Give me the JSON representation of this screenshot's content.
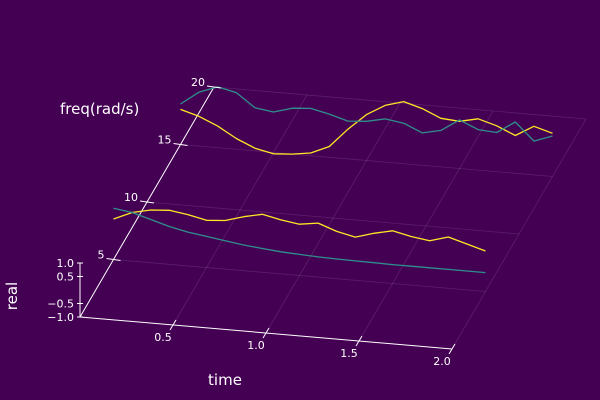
{
  "chart_data": {
    "type": "line",
    "subtype": "3d-line",
    "title": "",
    "xlabel": "time",
    "ylabel": "freq(rad/s)",
    "zlabel": "real",
    "xlim": [
      0,
      2.0
    ],
    "ylim": [
      0,
      20
    ],
    "zlim": [
      -1.0,
      1.0
    ],
    "x_ticks": [
      "0.5",
      "1.0",
      "1.5",
      "2.0"
    ],
    "y_ticks": [
      "5",
      "10",
      "15",
      "20"
    ],
    "z_ticks": [
      "1.0",
      "0.5",
      "−0.5",
      "−1.0"
    ],
    "x_tick_values": [
      0.5,
      1.0,
      1.5,
      2.0
    ],
    "y_tick_values": [
      5,
      10,
      15,
      20
    ],
    "z_tick_values": [
      1.0,
      0.5,
      -0.5,
      -1.0
    ],
    "background": "#440154",
    "grid": true,
    "legend": "none",
    "series": [
      {
        "color": "#fde725",
        "x": [
          0.0,
          0.1,
          0.2,
          0.3,
          0.4,
          0.5,
          0.6,
          0.7,
          0.8,
          0.9,
          1.0,
          1.1,
          1.2,
          1.3,
          1.4,
          1.5,
          1.6,
          1.7,
          1.8,
          1.9,
          2.0
        ],
        "y": [
          5,
          5,
          5,
          5,
          5,
          5,
          5,
          5,
          5,
          5,
          5,
          5,
          5,
          5,
          5,
          5,
          5,
          5,
          5,
          5,
          5
        ],
        "z": [
          0.5,
          0.8,
          0.95,
          1.0,
          0.9,
          0.75,
          0.8,
          1.0,
          1.15,
          1.0,
          0.9,
          1.0,
          0.75,
          0.6,
          0.8,
          0.95,
          0.8,
          0.7,
          0.9,
          0.7,
          0.5
        ]
      },
      {
        "color": "#fde725",
        "x": [
          0.0,
          0.1,
          0.2,
          0.3,
          0.4,
          0.5,
          0.6,
          0.7,
          0.8,
          0.9,
          1.0,
          1.1,
          1.2,
          1.3,
          1.4,
          1.5,
          1.6,
          1.7,
          1.8,
          1.9,
          2.0
        ],
        "y": [
          15,
          15,
          15,
          15,
          15,
          15,
          15,
          15,
          15,
          15,
          15,
          15,
          15,
          15,
          15,
          15,
          15,
          15,
          15,
          15,
          15
        ],
        "z": [
          0.3,
          0.1,
          -0.2,
          -0.6,
          -0.9,
          -1.05,
          -1.0,
          -0.9,
          -0.6,
          0.1,
          0.7,
          1.1,
          1.3,
          1.1,
          0.8,
          0.75,
          0.9,
          0.7,
          0.4,
          0.8,
          0.6
        ]
      },
      {
        "color": "#2f8f8c",
        "x": [
          0.0,
          0.1,
          0.2,
          0.3,
          0.4,
          0.5,
          0.6,
          0.7,
          0.8,
          0.9,
          1.0,
          1.1,
          1.2,
          1.3,
          1.4,
          1.5,
          1.6,
          1.7,
          1.8,
          1.9,
          2.0
        ],
        "y": [
          5,
          5,
          5,
          5,
          5,
          5,
          5,
          5,
          5,
          5,
          5,
          5,
          5,
          5,
          5,
          5,
          5,
          5,
          5,
          5,
          5
        ],
        "z": [
          0.9,
          0.8,
          0.6,
          0.4,
          0.25,
          0.15,
          0.05,
          -0.05,
          -0.12,
          -0.18,
          -0.22,
          -0.25,
          -0.27,
          -0.28,
          -0.29,
          -0.3,
          -0.3,
          -0.3,
          -0.3,
          -0.3,
          -0.3
        ]
      },
      {
        "color": "#2f8f8c",
        "x": [
          0.0,
          0.1,
          0.2,
          0.3,
          0.4,
          0.5,
          0.6,
          0.7,
          0.8,
          0.9,
          1.0,
          1.1,
          1.2,
          1.3,
          1.4,
          1.5,
          1.6,
          1.7,
          1.8,
          1.9,
          2.0
        ],
        "y": [
          15,
          15,
          15,
          15,
          15,
          15,
          15,
          15,
          15,
          15,
          15,
          15,
          15,
          15,
          15,
          15,
          15,
          15,
          15,
          15,
          15
        ],
        "z": [
          0.5,
          1.0,
          1.25,
          1.1,
          0.6,
          0.5,
          0.7,
          0.75,
          0.6,
          0.4,
          0.45,
          0.6,
          0.5,
          0.2,
          0.35,
          0.8,
          0.5,
          0.45,
          0.9,
          0.25,
          0.5
        ]
      }
    ]
  }
}
